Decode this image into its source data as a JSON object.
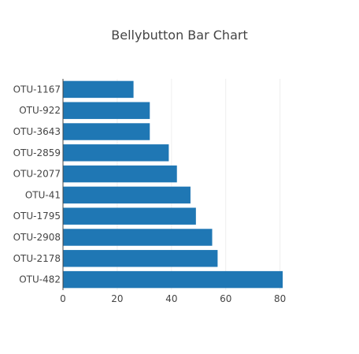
{
  "chart_data": {
    "type": "bar",
    "orientation": "horizontal",
    "title": "Bellybutton Bar Chart",
    "xlabel": "",
    "ylabel": "",
    "categories": [
      "OTU-1167",
      "OTU-922",
      "OTU-3643",
      "OTU-2859",
      "OTU-2077",
      "OTU-41",
      "OTU-1795",
      "OTU-2908",
      "OTU-2178",
      "OTU-482"
    ],
    "values": [
      26,
      32,
      32,
      39,
      42,
      47,
      49,
      55,
      57,
      81
    ],
    "xlim": [
      0,
      83
    ],
    "xticks": [
      0,
      20,
      40,
      60,
      80
    ],
    "grid": true,
    "legend": "none",
    "colors": {
      "bar": "#1f77b4",
      "grid": "#eeeeee",
      "axis": "#444444",
      "text": "#444444"
    }
  }
}
